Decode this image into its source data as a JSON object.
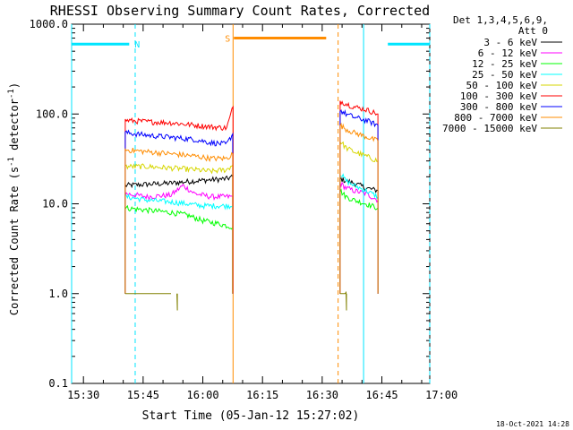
{
  "chart_data": {
    "type": "line",
    "title": "RHESSI Observing Summary Count Rates, Corrected",
    "xlabel": "Start Time (05-Jan-12 15:27:02)",
    "ylabel_main": "Corrected Count Rate (s",
    "ylabel_sup": "-1",
    "ylabel_rest": " detector",
    "ylabel_sup2": "-1",
    "ylabel_end": ")",
    "y_scale": "log",
    "ylim": [
      0.1,
      1000
    ],
    "y_ticks": [
      {
        "value": 1000,
        "label": "1000.0"
      },
      {
        "value": 100,
        "label": "100.0"
      },
      {
        "value": 10,
        "label": "10.0"
      },
      {
        "value": 1,
        "label": "1.0"
      },
      {
        "value": 0.1,
        "label": "0.1"
      }
    ],
    "xlim_min": [
      927.03,
      1017.03
    ],
    "x_ticks": [
      {
        "value": 930,
        "label": "15:30"
      },
      {
        "value": 945,
        "label": "15:45"
      },
      {
        "value": 960,
        "label": "16:00"
      },
      {
        "value": 975,
        "label": "16:15"
      },
      {
        "value": 990,
        "label": "16:30"
      },
      {
        "value": 1005,
        "label": "16:45"
      },
      {
        "value": 1020,
        "label": "17:00"
      }
    ],
    "legend": {
      "position": "top-right",
      "header": [
        "Det 1,3,4,5,6,9,",
        "Att 0"
      ],
      "entries": [
        {
          "label": "3 - 6 keV",
          "color": "#000000"
        },
        {
          "label": "6 - 12 keV",
          "color": "#ff00ff"
        },
        {
          "label": "12 - 25 keV",
          "color": "#00ff00"
        },
        {
          "label": "25 - 50 keV",
          "color": "#00ffff"
        },
        {
          "label": "50 - 100 keV",
          "color": "#d6d600"
        },
        {
          "label": "100 - 300 keV",
          "color": "#ff0000"
        },
        {
          "label": "300 - 800 keV",
          "color": "#0000ff"
        },
        {
          "label": "800 - 7000 keV",
          "color": "#ff8c00"
        },
        {
          "label": "7000 - 15000 keV",
          "color": "#808000"
        }
      ]
    },
    "flag_bars": [
      {
        "label": "N",
        "color": "#00e5ff",
        "y": 600,
        "segments": [
          [
            927.03,
            941.5
          ],
          [
            1006.5,
            1022.5
          ]
        ]
      },
      {
        "label": "S",
        "color": "#ff8c00",
        "y": 700,
        "segments": [
          [
            967.8,
            991.0
          ]
        ]
      }
    ],
    "vertical_markers": [
      {
        "x": 927.03,
        "color": "#00e5ff",
        "style": "solid"
      },
      {
        "x": 943.0,
        "color": "#00e5ff",
        "style": "dashed"
      },
      {
        "x": 967.6,
        "color": "#ff8c00",
        "style": "solid"
      },
      {
        "x": 994.0,
        "color": "#ff8c00",
        "style": "dashed"
      },
      {
        "x": 1000.4,
        "color": "#00e5ff",
        "style": "solid"
      },
      {
        "x": 1022.5,
        "color": "#00e5ff",
        "style": "dashed"
      }
    ],
    "series": [
      {
        "name": "3 - 6 keV",
        "color": "#000000",
        "segments": [
          {
            "x": [
              940.5,
              946.0,
              952.0,
              958.0,
              962.0,
              966.0,
              967.5
            ],
            "y": [
              16,
              16.5,
              17,
              18,
              18.5,
              19,
              20
            ]
          },
          {
            "x": [
              994.5,
              996.0,
              998.0,
              1001.0,
              1004.0
            ],
            "y": [
              19,
              18,
              17,
              15,
              14
            ]
          }
        ]
      },
      {
        "name": "6 - 12 keV",
        "color": "#ff00ff",
        "segments": [
          {
            "x": [
              940.5,
              946.0,
              952.0,
              955.0,
              958.0,
              962.0,
              967.5
            ],
            "y": [
              13,
              12,
              12.5,
              16,
              13,
              12,
              12
            ]
          },
          {
            "x": [
              994.5,
              996.0,
              998.0,
              1001.0,
              1004.0
            ],
            "y": [
              17,
              15,
              14,
              13,
              11
            ]
          }
        ]
      },
      {
        "name": "12 - 25 keV",
        "color": "#00ff00",
        "segments": [
          {
            "x": [
              940.5,
              946.0,
              952.0,
              956.0,
              960.0,
              964.0,
              967.5
            ],
            "y": [
              9,
              8.5,
              8,
              7.5,
              6.5,
              6,
              5.5
            ]
          },
          {
            "x": [
              994.5,
              996.0,
              998.0,
              1001.0,
              1004.0
            ],
            "y": [
              14,
              12,
              11,
              10,
              9
            ]
          }
        ]
      },
      {
        "name": "25 - 50 keV",
        "color": "#00ffff",
        "segments": [
          {
            "x": [
              940.5,
              946.0,
              952.0,
              956.0,
              960.0,
              964.0,
              967.5
            ],
            "y": [
              12,
              11,
              10.5,
              10,
              9.5,
              9.5,
              9.5
            ]
          },
          {
            "x": [
              994.5,
              996.0,
              998.0,
              1001.0,
              1004.0
            ],
            "y": [
              22,
              18,
              16,
              14,
              12
            ]
          }
        ]
      },
      {
        "name": "50 - 100 keV",
        "color": "#d6d600",
        "segments": [
          {
            "x": [
              940.5,
              946.0,
              952.0,
              958.0,
              962.0,
              966.0,
              967.5
            ],
            "y": [
              26,
              26,
              25,
              24,
              23,
              24,
              27
            ]
          },
          {
            "x": [
              994.5,
              996.0,
              998.0,
              1001.0,
              1004.0
            ],
            "y": [
              50,
              42,
              38,
              34,
              30
            ]
          }
        ]
      },
      {
        "name": "100 - 300 keV",
        "color": "#ff0000",
        "segments": [
          {
            "x": [
              940.5,
              946.0,
              952.0,
              958.0,
              962.0,
              966.0,
              967.6
            ],
            "y": [
              85,
              82,
              80,
              75,
              72,
              70,
              120
            ]
          },
          {
            "x": [
              994.5,
              996.0,
              998.0,
              1001.0,
              1004.0
            ],
            "y": [
              140,
              130,
              120,
              112,
              100
            ]
          }
        ]
      },
      {
        "name": "300 - 800 keV",
        "color": "#0000ff",
        "segments": [
          {
            "x": [
              940.5,
              946.0,
              952.0,
              958.0,
              962.0,
              966.0,
              967.5
            ],
            "y": [
              62,
              58,
              55,
              52,
              48,
              46,
              60
            ]
          },
          {
            "x": [
              994.5,
              996.0,
              998.0,
              1001.0,
              1004.0
            ],
            "y": [
              110,
              100,
              92,
              85,
              75
            ]
          }
        ]
      },
      {
        "name": "800 - 7000 keV",
        "color": "#ff8c00",
        "segments": [
          {
            "x": [
              940.5,
              946.0,
              952.0,
              958.0,
              962.0,
              966.0,
              967.5
            ],
            "y": [
              40,
              38,
              36,
              34,
              32,
              32,
              36
            ]
          },
          {
            "x": [
              994.5,
              996.0,
              998.0,
              1001.0,
              1004.0
            ],
            "y": [
              75,
              68,
              62,
              56,
              50
            ]
          }
        ]
      },
      {
        "name": "7000 - 15000 keV",
        "color": "#808000",
        "segments": [
          {
            "x": [
              940.5,
              943.0,
              946.0,
              949.0,
              952.0
            ],
            "y": [
              1,
              1,
              1,
              1,
              1
            ]
          },
          {
            "x": [
              953.5,
              953.6
            ],
            "y": [
              1,
              0.65
            ]
          },
          {
            "x": [
              994.5,
              996.0,
              996.1
            ],
            "y": [
              1,
              1,
              0.65
            ]
          }
        ]
      }
    ],
    "timestamp": "18-Oct-2021 14:28"
  }
}
